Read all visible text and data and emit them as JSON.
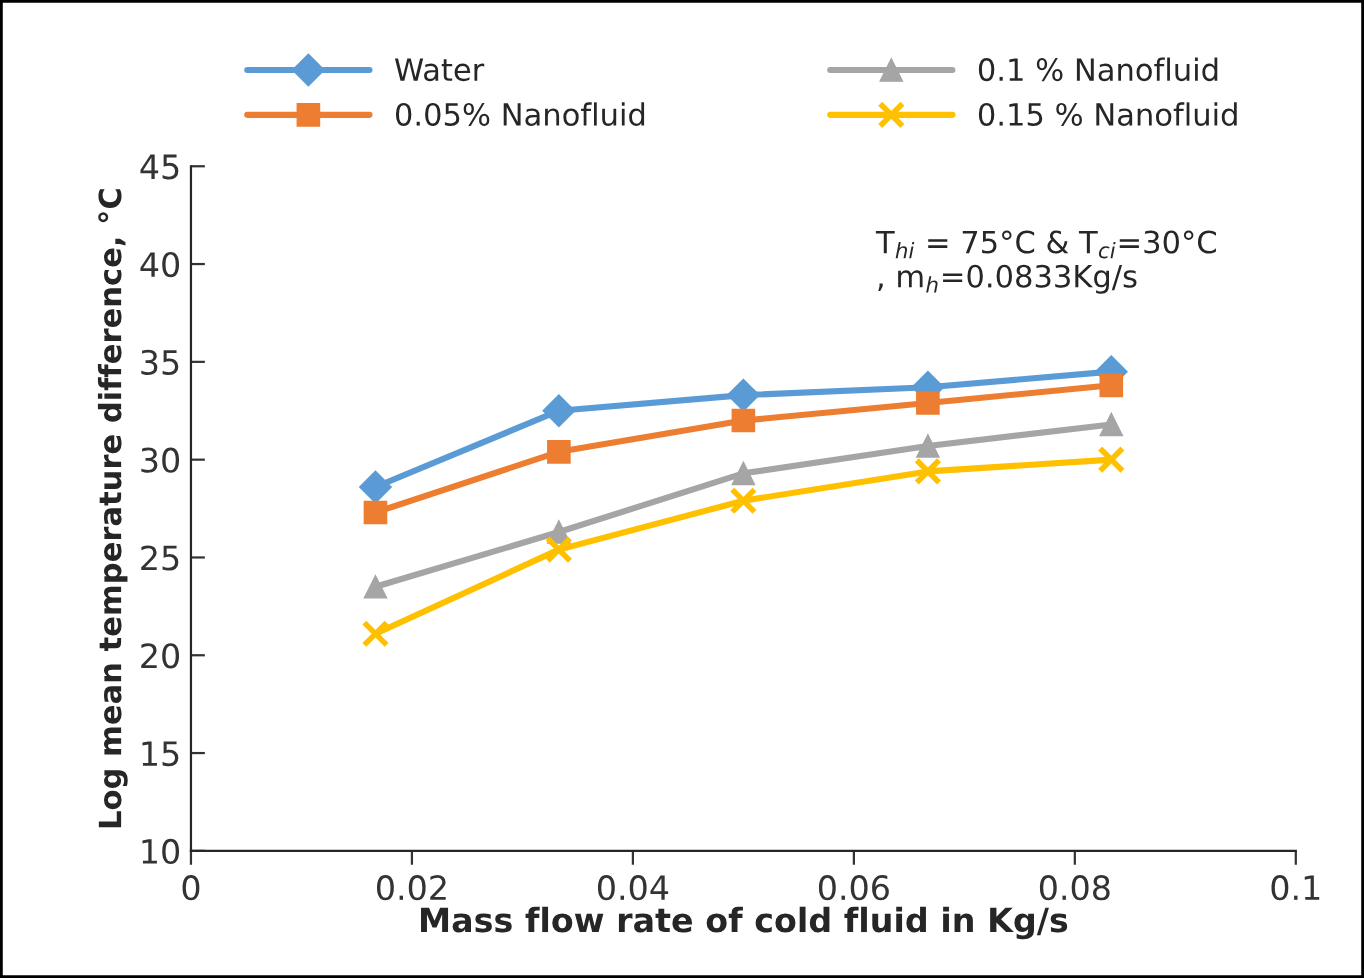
{
  "chart_data": {
    "type": "line",
    "xlabel": "Mass flow rate of cold fluid in Kg/s",
    "ylabel": "Log mean temperature difference, °C",
    "x": [
      0.0167,
      0.0333,
      0.05,
      0.0667,
      0.0833
    ],
    "series": [
      {
        "name": "Water",
        "color": "#5b9bd5",
        "marker": "diamond",
        "values": [
          28.6,
          32.5,
          33.3,
          33.7,
          34.5
        ]
      },
      {
        "name": "0.05% Nanofluid",
        "color": "#ed7d31",
        "marker": "square",
        "values": [
          27.3,
          30.4,
          32.0,
          32.9,
          33.8
        ]
      },
      {
        "name": "0.1 % Nanofluid",
        "color": "#a5a5a5",
        "marker": "triangle",
        "values": [
          23.5,
          26.3,
          29.3,
          30.7,
          31.8
        ]
      },
      {
        "name": "0.15 % Nanofluid",
        "color": "#ffc000",
        "marker": "cross",
        "values": [
          21.1,
          25.4,
          27.9,
          29.4,
          30.0
        ]
      }
    ],
    "xlim": [
      0,
      0.1
    ],
    "xticks": [
      0,
      {
        "value": 0.02,
        "label": "0.02"
      },
      {
        "value": 0.04,
        "label": "0.04"
      },
      {
        "value": 0.06,
        "label": "0.06"
      },
      {
        "value": 0.08,
        "label": "0.08"
      },
      0.1
    ],
    "ylim": [
      10,
      45
    ],
    "yticks": [
      10,
      15,
      20,
      25,
      30,
      35,
      40,
      45
    ],
    "annotations": [
      "T$_{hi}$ = 75°C & T$_{ci}$=30°C\n, m$_{h}$=0.0833Kg/s"
    ],
    "legend": "top",
    "grid": false,
    "line_style": "solid"
  }
}
